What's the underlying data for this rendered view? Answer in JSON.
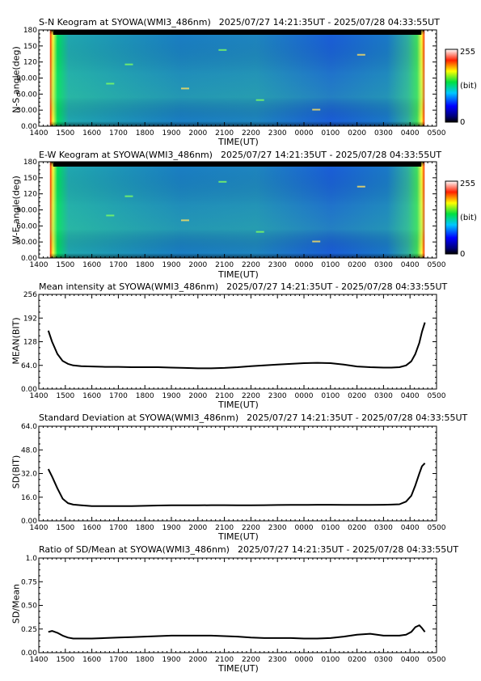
{
  "chart_data": [
    {
      "type": "heatmap",
      "title": "S-N Keogram at SYOWA(WMI3_486nm)",
      "time_range": "2025/07/27 14:21:35UT - 2025/07/28 04:33:55UT",
      "xlabel": "TIME(UT)",
      "ylabel": "N-S angle(deg)",
      "x_tick_labels": [
        "1400",
        "1500",
        "1600",
        "1700",
        "1800",
        "1900",
        "2000",
        "2100",
        "2200",
        "2300",
        "0000",
        "0100",
        "0200",
        "0300",
        "0400",
        "0500"
      ],
      "y_tick_labels": [
        "0.00",
        "30.00",
        "60.00",
        "90.00",
        "120",
        "150",
        "180"
      ],
      "ylim": [
        0,
        180
      ],
      "colorbar": {
        "max_label": "255",
        "min_label": "0",
        "unit_label": "(bit)"
      }
    },
    {
      "type": "heatmap",
      "title": "E-W Keogram at SYOWA(WMI3_486nm)",
      "time_range": "2025/07/27 14:21:35UT - 2025/07/28 04:33:55UT",
      "xlabel": "TIME(UT)",
      "ylabel": "W-E angle(deg)",
      "x_tick_labels": [
        "1400",
        "1500",
        "1600",
        "1700",
        "1800",
        "1900",
        "2000",
        "2100",
        "2200",
        "2300",
        "0000",
        "0100",
        "0200",
        "0300",
        "0400",
        "0500"
      ],
      "y_tick_labels": [
        "0.00",
        "30.00",
        "60.00",
        "90.00",
        "120",
        "150",
        "180"
      ],
      "ylim": [
        0,
        180
      ],
      "colorbar": {
        "max_label": "255",
        "min_label": "0",
        "unit_label": "(bit)"
      }
    },
    {
      "type": "line",
      "title": "Mean intensity at SYOWA(WMI3_486nm)",
      "time_range": "2025/07/27 14:21:35UT - 2025/07/28 04:33:55UT",
      "xlabel": "TIME(UT)",
      "ylabel": "MEAN(BIT)",
      "x_tick_labels": [
        "1400",
        "1500",
        "1600",
        "1700",
        "1800",
        "1900",
        "2000",
        "2100",
        "2200",
        "2300",
        "0000",
        "0100",
        "0200",
        "0300",
        "0400",
        "0500"
      ],
      "y_tick_labels": [
        "0.00",
        "64.0",
        "128",
        "192",
        "256"
      ],
      "ylim": [
        0,
        256
      ],
      "xlim_hours": [
        14,
        29
      ],
      "x_hours": [
        14.36,
        14.5,
        14.7,
        14.9,
        15.1,
        15.3,
        15.6,
        16,
        16.5,
        17,
        17.5,
        18,
        18.5,
        19,
        19.5,
        20,
        20.5,
        21,
        21.5,
        22,
        22.5,
        23,
        23.5,
        24,
        24.5,
        25,
        25.5,
        26,
        26.5,
        27,
        27.3,
        27.6,
        27.85,
        28.05,
        28.2,
        28.35,
        28.45,
        28.56
      ],
      "y": [
        158,
        128,
        95,
        76,
        68,
        64,
        62,
        61,
        60,
        60,
        59,
        59,
        59,
        58,
        57,
        56,
        56,
        57,
        59,
        62,
        64,
        66,
        68,
        70,
        71,
        70,
        66,
        61,
        59,
        58,
        58,
        59,
        64,
        75,
        95,
        125,
        155,
        180
      ]
    },
    {
      "type": "line",
      "title": "Standard Deviation at SYOWA(WMI3_486nm)",
      "time_range": "2025/07/27 14:21:35UT - 2025/07/28 04:33:55UT",
      "xlabel": "TIME(UT)",
      "ylabel": "SD(BIT)",
      "x_tick_labels": [
        "1400",
        "1500",
        "1600",
        "1700",
        "1800",
        "1900",
        "2000",
        "2100",
        "2200",
        "2300",
        "0000",
        "0100",
        "0200",
        "0300",
        "0400",
        "0500"
      ],
      "y_tick_labels": [
        "0.00",
        "16.0",
        "32.0",
        "48.0",
        "64.0"
      ],
      "ylim": [
        0,
        64
      ],
      "xlim_hours": [
        14,
        29
      ],
      "x_hours": [
        14.36,
        14.5,
        14.7,
        14.9,
        15.1,
        15.3,
        15.6,
        16,
        16.5,
        17,
        17.5,
        18,
        18.5,
        19,
        19.5,
        20,
        20.5,
        21,
        21.5,
        22,
        22.5,
        23,
        23.5,
        24,
        24.5,
        25,
        25.5,
        26,
        26.5,
        27,
        27.3,
        27.6,
        27.85,
        28.05,
        28.2,
        28.35,
        28.45,
        28.56
      ],
      "y": [
        35,
        30,
        22,
        15,
        12,
        11,
        10.5,
        10,
        10,
        10,
        10,
        10.2,
        10.4,
        10.5,
        10.5,
        10.5,
        10.6,
        10.6,
        10.5,
        10.5,
        10.6,
        10.7,
        10.8,
        10.8,
        10.9,
        10.9,
        10.8,
        10.8,
        10.8,
        10.9,
        11,
        11.2,
        13,
        17,
        24,
        32,
        37,
        39
      ]
    },
    {
      "type": "line",
      "title": "Ratio of SD/Mean at SYOWA(WMI3_486nm)",
      "time_range": "2025/07/27 14:21:35UT - 2025/07/28 04:33:55UT",
      "xlabel": "TIME(UT)",
      "ylabel": "SD/Mean",
      "x_tick_labels": [
        "1400",
        "1500",
        "1600",
        "1700",
        "1800",
        "1900",
        "2000",
        "2100",
        "2200",
        "2300",
        "0000",
        "0100",
        "0200",
        "0300",
        "0400",
        "0500"
      ],
      "y_tick_labels": [
        "0.00",
        "0.25",
        "0.50",
        "0.75",
        "1.0"
      ],
      "ylim": [
        0,
        1
      ],
      "xlim_hours": [
        14,
        29
      ],
      "x_hours": [
        14.36,
        14.5,
        14.7,
        14.9,
        15.1,
        15.3,
        15.6,
        16,
        16.5,
        17,
        17.5,
        18,
        18.5,
        19,
        19.5,
        20,
        20.5,
        21,
        21.5,
        22,
        22.5,
        23,
        23.5,
        24,
        24.5,
        25,
        25.5,
        26,
        26.5,
        27,
        27.3,
        27.6,
        27.85,
        28.05,
        28.2,
        28.35,
        28.45,
        28.56
      ],
      "y": [
        0.22,
        0.23,
        0.21,
        0.18,
        0.16,
        0.15,
        0.15,
        0.15,
        0.155,
        0.16,
        0.165,
        0.17,
        0.175,
        0.18,
        0.18,
        0.18,
        0.18,
        0.175,
        0.17,
        0.16,
        0.155,
        0.155,
        0.155,
        0.15,
        0.15,
        0.155,
        0.17,
        0.19,
        0.2,
        0.18,
        0.18,
        0.18,
        0.19,
        0.22,
        0.27,
        0.29,
        0.26,
        0.22
      ]
    }
  ]
}
